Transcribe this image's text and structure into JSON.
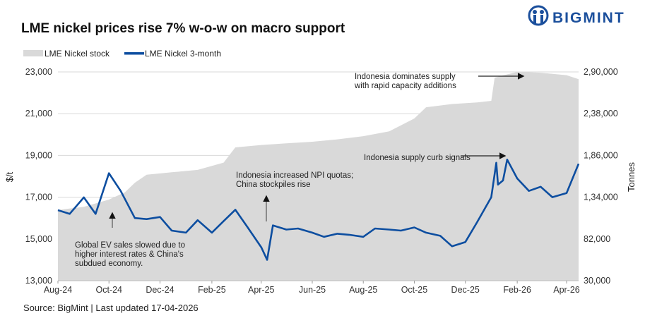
{
  "brand": {
    "logo_text": "BIGMINT",
    "color": "#1b4f9c"
  },
  "source": "Source: BigMint | Last updated 17-04-2026",
  "chart_data": {
    "type": "line",
    "title": "LME nickel prices rise 7% w-o-w on macro support",
    "ylabel": "$/t",
    "y2label": "Tonnes",
    "ylim": [
      13000,
      23000
    ],
    "y2lim": [
      30000,
      290000
    ],
    "yticks": [
      "13,000",
      "15,000",
      "17,000",
      "19,000",
      "21,000",
      "23,000"
    ],
    "y2ticks": [
      "30,000",
      "82,000",
      "1,34,000",
      "1,86,000",
      "2,38,000",
      "2,90,000"
    ],
    "xticks": [
      {
        "date": "2024-08-01",
        "label": "Aug-24"
      },
      {
        "date": "2024-10-01",
        "label": "Oct-24"
      },
      {
        "date": "2024-12-01",
        "label": "Dec-24"
      },
      {
        "date": "2025-02-01",
        "label": "Feb-25"
      },
      {
        "date": "2025-04-01",
        "label": "Apr-25"
      },
      {
        "date": "2025-06-01",
        "label": "Jun-25"
      },
      {
        "date": "2025-08-01",
        "label": "Aug-25"
      },
      {
        "date": "2025-10-01",
        "label": "Oct-25"
      },
      {
        "date": "2025-12-01",
        "label": "Dec-25"
      },
      {
        "date": "2026-02-01",
        "label": "Feb-26"
      },
      {
        "date": "2026-04-01",
        "label": "Apr-26"
      }
    ],
    "grid": true,
    "legend_position": "top-left",
    "series": [
      {
        "name": "LME Nickel stock",
        "type": "area",
        "axis": "right",
        "color": "#d9d9d9",
        "x": [
          "2024-08-01",
          "2024-09-01",
          "2024-10-01",
          "2024-10-20",
          "2024-11-01",
          "2024-11-15",
          "2024-12-15",
          "2025-01-15",
          "2025-02-15",
          "2025-03-01",
          "2025-04-01",
          "2025-05-01",
          "2025-06-01",
          "2025-07-01",
          "2025-08-01",
          "2025-09-01",
          "2025-10-01",
          "2025-10-15",
          "2025-11-15",
          "2025-12-15",
          "2026-01-01",
          "2026-01-05",
          "2026-02-01",
          "2026-03-01",
          "2026-04-01",
          "2026-04-17"
        ],
        "values": [
          118000,
          122000,
          131000,
          140000,
          152000,
          162000,
          165000,
          168000,
          177000,
          196000,
          199000,
          201000,
          203000,
          206000,
          210000,
          216000,
          232000,
          246000,
          250000,
          252000,
          254000,
          283000,
          290000,
          289000,
          286000,
          281000
        ]
      },
      {
        "name": "LME Nickel 3-month",
        "type": "line",
        "axis": "left",
        "color": "#0d4ea0",
        "x": [
          "2024-08-01",
          "2024-08-15",
          "2024-09-01",
          "2024-09-15",
          "2024-10-01",
          "2024-10-15",
          "2024-11-01",
          "2024-11-15",
          "2024-12-01",
          "2024-12-15",
          "2025-01-01",
          "2025-01-15",
          "2025-02-01",
          "2025-02-15",
          "2025-03-01",
          "2025-03-15",
          "2025-04-01",
          "2025-04-08",
          "2025-04-15",
          "2025-05-01",
          "2025-05-15",
          "2025-06-01",
          "2025-06-15",
          "2025-07-01",
          "2025-07-15",
          "2025-08-01",
          "2025-08-15",
          "2025-09-01",
          "2025-09-15",
          "2025-10-01",
          "2025-10-15",
          "2025-11-01",
          "2025-11-15",
          "2025-12-01",
          "2025-12-15",
          "2026-01-01",
          "2026-01-07",
          "2026-01-09",
          "2026-01-15",
          "2026-01-20",
          "2026-02-01",
          "2026-02-15",
          "2026-03-01",
          "2026-03-15",
          "2026-04-01",
          "2026-04-17"
        ],
        "values": [
          16380,
          16200,
          16990,
          16200,
          18150,
          17300,
          16000,
          15950,
          16050,
          15400,
          15300,
          15900,
          15300,
          15850,
          16400,
          15600,
          14600,
          14000,
          15650,
          15450,
          15500,
          15300,
          15100,
          15250,
          15200,
          15100,
          15500,
          15450,
          15400,
          15550,
          15300,
          15150,
          14650,
          14850,
          15800,
          17000,
          18650,
          17600,
          17800,
          18800,
          17900,
          17300,
          17500,
          17000,
          17200,
          18600
        ]
      }
    ],
    "annotations": [
      {
        "text": [
          "Global EV sales slowed due to",
          "higher interest rates & China's",
          "subdued economy."
        ],
        "target_date": "2024-10-05",
        "arrow": "up"
      },
      {
        "text": [
          "Indonesia increased NPI quotas;",
          "China stockpiles rise"
        ],
        "target_date": "2025-04-10",
        "arrow": "up"
      },
      {
        "text": [
          "Indonesia supply curb signals"
        ],
        "target_date": "2026-01-20",
        "arrow": "right"
      },
      {
        "text": [
          "Indonesia dominates supply",
          "with rapid capacity additions"
        ],
        "target_date": "2026-02-06",
        "arrow": "right"
      }
    ]
  }
}
